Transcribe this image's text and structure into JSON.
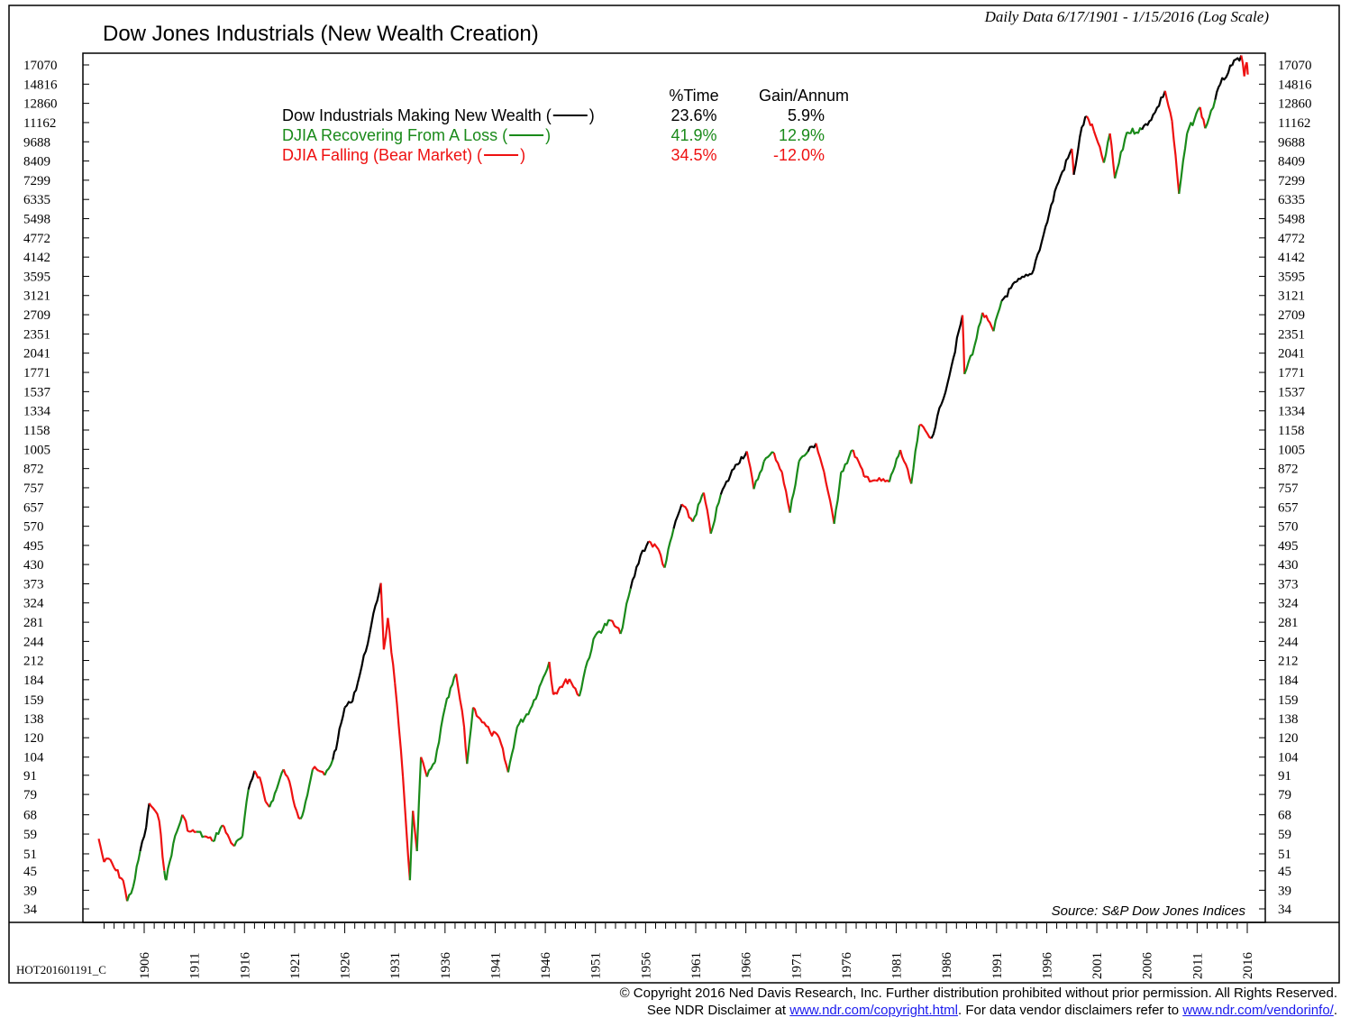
{
  "chart_data": {
    "type": "line",
    "title": "Dow Jones Industrials (New Wealth Creation)",
    "subtitle": "Daily Data 6/17/1901 - 1/15/2016 (Log Scale)",
    "scale": "log",
    "ylim": [
      30,
      19000
    ],
    "xlim": [
      1901.4,
      2016.2
    ],
    "y_ticks": [
      "17070",
      "14816",
      "12860",
      "11162",
      "9688",
      "8409",
      "7299",
      "6335",
      "5498",
      "4772",
      "4142",
      "3595",
      "3121",
      "2709",
      "2351",
      "2041",
      "1771",
      "1537",
      "1334",
      "1158",
      "1005",
      "872",
      "757",
      "657",
      "570",
      "495",
      "430",
      "373",
      "324",
      "281",
      "244",
      "212",
      "184",
      "159",
      "138",
      "120",
      "104",
      "91",
      "79",
      "68",
      "59",
      "51",
      "45",
      "39",
      "34"
    ],
    "x_ticks": [
      "1906",
      "1911",
      "1916",
      "1921",
      "1926",
      "1931",
      "1936",
      "1941",
      "1946",
      "1951",
      "1956",
      "1961",
      "1966",
      "1971",
      "1976",
      "1981",
      "1986",
      "1991",
      "1996",
      "2001",
      "2006",
      "2011",
      "2016"
    ],
    "grid": false,
    "legend_position": "top-left",
    "legend": {
      "col_time": "%Time",
      "col_gain": "Gain/Annum",
      "rows": [
        {
          "label": "Dow Industrials Making New Wealth (",
          "suffix": ")",
          "time": "23.6%",
          "gain": "5.9%",
          "color": "#000000"
        },
        {
          "label": "DJIA Recovering From A Loss (",
          "suffix": ")",
          "time": "41.9%",
          "gain": "12.9%",
          "color": "#1a8a1a"
        },
        {
          "label": "DJIA Falling (Bear Market) (",
          "suffix": ")",
          "time": "34.5%",
          "gain": "-12.0%",
          "color": "#ee1111"
        }
      ]
    },
    "colors": {
      "new_wealth": "#000000",
      "recovering": "#1a8a1a",
      "falling": "#ee1111"
    },
    "series": [
      {
        "x": 1901.46,
        "y": 57,
        "state": "falling"
      },
      {
        "x": 1902.0,
        "y": 48,
        "state": "falling"
      },
      {
        "x": 1902.6,
        "y": 49,
        "state": "falling"
      },
      {
        "x": 1903.0,
        "y": 46,
        "state": "falling"
      },
      {
        "x": 1903.9,
        "y": 42,
        "state": "falling"
      },
      {
        "x": 1904.3,
        "y": 36,
        "state": "falling"
      },
      {
        "x": 1904.9,
        "y": 40,
        "state": "recovering"
      },
      {
        "x": 1905.6,
        "y": 52,
        "state": "recovering"
      },
      {
        "x": 1906.2,
        "y": 62,
        "state": "new"
      },
      {
        "x": 1906.5,
        "y": 74,
        "state": "new"
      },
      {
        "x": 1907.1,
        "y": 70,
        "state": "falling"
      },
      {
        "x": 1907.5,
        "y": 65,
        "state": "falling"
      },
      {
        "x": 1908.0,
        "y": 45,
        "state": "falling"
      },
      {
        "x": 1908.2,
        "y": 42,
        "state": "recovering"
      },
      {
        "x": 1908.9,
        "y": 55,
        "state": "recovering"
      },
      {
        "x": 1909.8,
        "y": 68,
        "state": "recovering"
      },
      {
        "x": 1910.5,
        "y": 60,
        "state": "falling"
      },
      {
        "x": 1911.2,
        "y": 60,
        "state": "falling"
      },
      {
        "x": 1912.0,
        "y": 58,
        "state": "recovering"
      },
      {
        "x": 1912.8,
        "y": 56,
        "state": "falling"
      },
      {
        "x": 1913.8,
        "y": 63,
        "state": "recovering"
      },
      {
        "x": 1914.5,
        "y": 57,
        "state": "falling"
      },
      {
        "x": 1915.0,
        "y": 54,
        "state": "falling"
      },
      {
        "x": 1915.8,
        "y": 58,
        "state": "recovering"
      },
      {
        "x": 1916.4,
        "y": 82,
        "state": "recovering"
      },
      {
        "x": 1917.0,
        "y": 94,
        "state": "new"
      },
      {
        "x": 1917.5,
        "y": 90,
        "state": "falling"
      },
      {
        "x": 1918.1,
        "y": 75,
        "state": "falling"
      },
      {
        "x": 1918.5,
        "y": 72,
        "state": "falling"
      },
      {
        "x": 1919.2,
        "y": 82,
        "state": "recovering"
      },
      {
        "x": 1919.9,
        "y": 95,
        "state": "recovering"
      },
      {
        "x": 1920.3,
        "y": 90,
        "state": "falling"
      },
      {
        "x": 1921.2,
        "y": 70,
        "state": "falling"
      },
      {
        "x": 1921.6,
        "y": 66,
        "state": "falling"
      },
      {
        "x": 1922.1,
        "y": 75,
        "state": "recovering"
      },
      {
        "x": 1922.8,
        "y": 95,
        "state": "recovering"
      },
      {
        "x": 1923.4,
        "y": 94,
        "state": "falling"
      },
      {
        "x": 1924.0,
        "y": 91,
        "state": "falling"
      },
      {
        "x": 1924.8,
        "y": 102,
        "state": "recovering"
      },
      {
        "x": 1925.3,
        "y": 118,
        "state": "new"
      },
      {
        "x": 1926.0,
        "y": 150,
        "state": "new"
      },
      {
        "x": 1926.6,
        "y": 155,
        "state": "new"
      },
      {
        "x": 1927.3,
        "y": 180,
        "state": "new"
      },
      {
        "x": 1928.5,
        "y": 260,
        "state": "new"
      },
      {
        "x": 1929.6,
        "y": 375,
        "state": "new"
      },
      {
        "x": 1929.9,
        "y": 230,
        "state": "falling"
      },
      {
        "x": 1930.3,
        "y": 290,
        "state": "falling"
      },
      {
        "x": 1931.0,
        "y": 180,
        "state": "falling"
      },
      {
        "x": 1931.8,
        "y": 90,
        "state": "falling"
      },
      {
        "x": 1932.5,
        "y": 42,
        "state": "falling"
      },
      {
        "x": 1932.8,
        "y": 70,
        "state": "recovering"
      },
      {
        "x": 1933.2,
        "y": 52,
        "state": "falling"
      },
      {
        "x": 1933.6,
        "y": 104,
        "state": "recovering"
      },
      {
        "x": 1934.2,
        "y": 90,
        "state": "falling"
      },
      {
        "x": 1935.0,
        "y": 100,
        "state": "recovering"
      },
      {
        "x": 1936.0,
        "y": 150,
        "state": "recovering"
      },
      {
        "x": 1937.1,
        "y": 192,
        "state": "recovering"
      },
      {
        "x": 1937.9,
        "y": 130,
        "state": "falling"
      },
      {
        "x": 1938.2,
        "y": 99,
        "state": "falling"
      },
      {
        "x": 1938.8,
        "y": 150,
        "state": "recovering"
      },
      {
        "x": 1939.5,
        "y": 138,
        "state": "falling"
      },
      {
        "x": 1940.5,
        "y": 125,
        "state": "falling"
      },
      {
        "x": 1941.4,
        "y": 120,
        "state": "falling"
      },
      {
        "x": 1942.3,
        "y": 93,
        "state": "falling"
      },
      {
        "x": 1943.2,
        "y": 130,
        "state": "recovering"
      },
      {
        "x": 1944.5,
        "y": 148,
        "state": "recovering"
      },
      {
        "x": 1945.6,
        "y": 180,
        "state": "recovering"
      },
      {
        "x": 1946.4,
        "y": 210,
        "state": "recovering"
      },
      {
        "x": 1946.8,
        "y": 165,
        "state": "falling"
      },
      {
        "x": 1947.5,
        "y": 175,
        "state": "falling"
      },
      {
        "x": 1948.4,
        "y": 185,
        "state": "falling"
      },
      {
        "x": 1949.4,
        "y": 163,
        "state": "falling"
      },
      {
        "x": 1950.0,
        "y": 200,
        "state": "recovering"
      },
      {
        "x": 1951.0,
        "y": 255,
        "state": "recovering"
      },
      {
        "x": 1952.5,
        "y": 285,
        "state": "recovering"
      },
      {
        "x": 1953.5,
        "y": 258,
        "state": "falling"
      },
      {
        "x": 1954.5,
        "y": 360,
        "state": "recovering"
      },
      {
        "x": 1955.5,
        "y": 460,
        "state": "new"
      },
      {
        "x": 1956.3,
        "y": 510,
        "state": "new"
      },
      {
        "x": 1957.3,
        "y": 480,
        "state": "falling"
      },
      {
        "x": 1957.9,
        "y": 420,
        "state": "falling"
      },
      {
        "x": 1958.8,
        "y": 560,
        "state": "recovering"
      },
      {
        "x": 1959.6,
        "y": 670,
        "state": "new"
      },
      {
        "x": 1960.7,
        "y": 590,
        "state": "falling"
      },
      {
        "x": 1961.8,
        "y": 730,
        "state": "recovering"
      },
      {
        "x": 1962.5,
        "y": 540,
        "state": "falling"
      },
      {
        "x": 1963.5,
        "y": 720,
        "state": "recovering"
      },
      {
        "x": 1965.0,
        "y": 900,
        "state": "new"
      },
      {
        "x": 1966.1,
        "y": 990,
        "state": "new"
      },
      {
        "x": 1966.8,
        "y": 750,
        "state": "falling"
      },
      {
        "x": 1967.8,
        "y": 920,
        "state": "recovering"
      },
      {
        "x": 1968.8,
        "y": 980,
        "state": "recovering"
      },
      {
        "x": 1969.6,
        "y": 850,
        "state": "falling"
      },
      {
        "x": 1970.4,
        "y": 630,
        "state": "falling"
      },
      {
        "x": 1971.3,
        "y": 920,
        "state": "recovering"
      },
      {
        "x": 1972.2,
        "y": 990,
        "state": "recovering"
      },
      {
        "x": 1973.0,
        "y": 1050,
        "state": "new"
      },
      {
        "x": 1973.8,
        "y": 850,
        "state": "falling"
      },
      {
        "x": 1974.8,
        "y": 580,
        "state": "falling"
      },
      {
        "x": 1975.5,
        "y": 850,
        "state": "recovering"
      },
      {
        "x": 1976.7,
        "y": 1000,
        "state": "recovering"
      },
      {
        "x": 1977.8,
        "y": 820,
        "state": "falling"
      },
      {
        "x": 1978.9,
        "y": 800,
        "state": "falling"
      },
      {
        "x": 1980.3,
        "y": 790,
        "state": "falling"
      },
      {
        "x": 1981.4,
        "y": 1000,
        "state": "recovering"
      },
      {
        "x": 1982.5,
        "y": 780,
        "state": "falling"
      },
      {
        "x": 1983.3,
        "y": 1200,
        "state": "recovering"
      },
      {
        "x": 1984.5,
        "y": 1090,
        "state": "falling"
      },
      {
        "x": 1985.5,
        "y": 1400,
        "state": "new"
      },
      {
        "x": 1986.5,
        "y": 1850,
        "state": "new"
      },
      {
        "x": 1987.6,
        "y": 2700,
        "state": "new"
      },
      {
        "x": 1987.8,
        "y": 1750,
        "state": "falling"
      },
      {
        "x": 1988.8,
        "y": 2150,
        "state": "recovering"
      },
      {
        "x": 1989.6,
        "y": 2750,
        "state": "recovering"
      },
      {
        "x": 1990.7,
        "y": 2400,
        "state": "falling"
      },
      {
        "x": 1991.5,
        "y": 3000,
        "state": "recovering"
      },
      {
        "x": 1993.0,
        "y": 3450,
        "state": "new"
      },
      {
        "x": 1994.5,
        "y": 3650,
        "state": "new"
      },
      {
        "x": 1995.7,
        "y": 4900,
        "state": "new"
      },
      {
        "x": 1997.0,
        "y": 7000,
        "state": "new"
      },
      {
        "x": 1998.5,
        "y": 9200,
        "state": "new"
      },
      {
        "x": 1998.7,
        "y": 7600,
        "state": "falling"
      },
      {
        "x": 1999.5,
        "y": 10800,
        "state": "new"
      },
      {
        "x": 2000.0,
        "y": 11700,
        "state": "new"
      },
      {
        "x": 2000.7,
        "y": 10500,
        "state": "falling"
      },
      {
        "x": 2001.7,
        "y": 8300,
        "state": "falling"
      },
      {
        "x": 2002.3,
        "y": 10300,
        "state": "recovering"
      },
      {
        "x": 2002.8,
        "y": 7400,
        "state": "falling"
      },
      {
        "x": 2004.0,
        "y": 10400,
        "state": "recovering"
      },
      {
        "x": 2005.5,
        "y": 10600,
        "state": "recovering"
      },
      {
        "x": 2006.8,
        "y": 12000,
        "state": "new"
      },
      {
        "x": 2007.8,
        "y": 14100,
        "state": "new"
      },
      {
        "x": 2008.5,
        "y": 11300,
        "state": "falling"
      },
      {
        "x": 2009.2,
        "y": 6600,
        "state": "falling"
      },
      {
        "x": 2010.0,
        "y": 10300,
        "state": "recovering"
      },
      {
        "x": 2011.3,
        "y": 12500,
        "state": "recovering"
      },
      {
        "x": 2011.8,
        "y": 10700,
        "state": "falling"
      },
      {
        "x": 2012.8,
        "y": 13200,
        "state": "recovering"
      },
      {
        "x": 2013.3,
        "y": 14800,
        "state": "new"
      },
      {
        "x": 2014.5,
        "y": 17000,
        "state": "new"
      },
      {
        "x": 2015.4,
        "y": 18300,
        "state": "new"
      },
      {
        "x": 2015.7,
        "y": 15700,
        "state": "falling"
      },
      {
        "x": 2015.95,
        "y": 17400,
        "state": "falling"
      },
      {
        "x": 2016.05,
        "y": 15900,
        "state": "falling"
      }
    ]
  },
  "code": "HOT201601191_C",
  "source": "Source: S&P Dow Jones Indices",
  "footer": {
    "line1": "© Copyright 2016 Ned Davis Research, Inc.  Further distribution prohibited without prior permission.  All Rights Reserved.",
    "line2_a": "See NDR Disclaimer at ",
    "link1": "www.ndr.com/copyright.html",
    "line2_b": ". For data vendor disclaimers refer to ",
    "link2": "www.ndr.com/vendorinfo/",
    "line2_c": "."
  }
}
